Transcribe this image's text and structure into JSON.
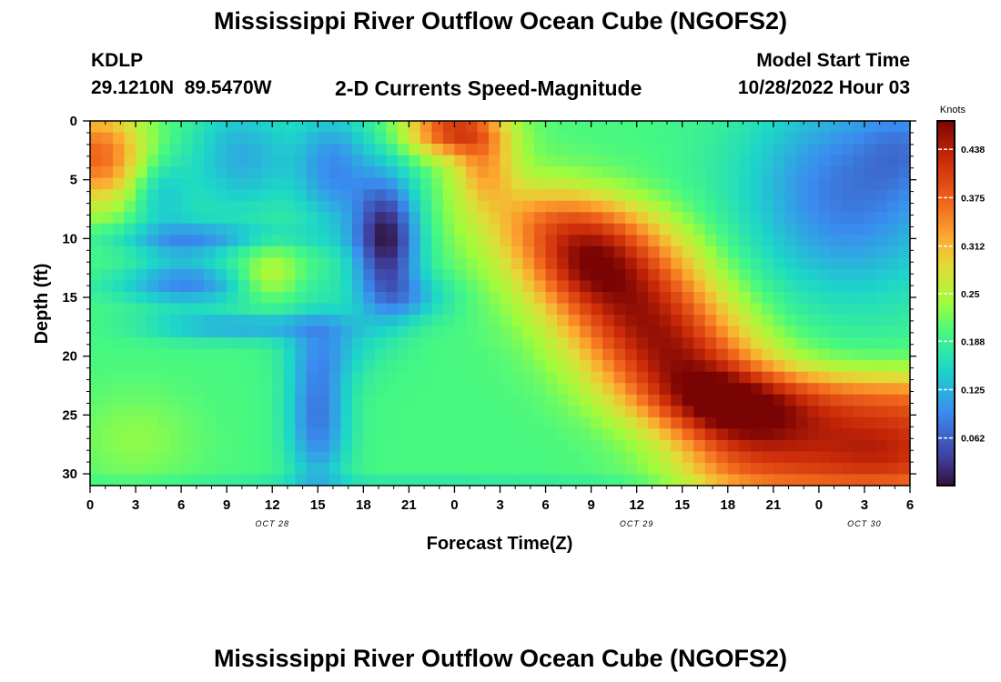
{
  "page": {
    "title": "Mississippi River Outflow Ocean Cube (NGOFS2)",
    "bottom_title": "Mississippi River Outflow Ocean Cube (NGOFS2)"
  },
  "header": {
    "station": "KDLP",
    "coords": "29.1210N  89.5470W",
    "plot_label": "2-D Currents Speed-Magnitude",
    "model_start_label": "Model Start Time",
    "model_start_value": "10/28/2022 Hour 03"
  },
  "chart_data": {
    "type": "heatmap",
    "title": "2-D Currents Speed-Magnitude",
    "xlabel": "Forecast Time(Z)",
    "ylabel": "Depth (ft)",
    "x_tick_labels": [
      "0",
      "3",
      "6",
      "9",
      "12",
      "15",
      "18",
      "21",
      "0",
      "3",
      "6",
      "9",
      "12",
      "15",
      "18",
      "21",
      "0",
      "3",
      "6"
    ],
    "x_tick_hours": [
      0,
      3,
      6,
      9,
      12,
      15,
      18,
      21,
      24,
      27,
      30,
      33,
      36,
      39,
      42,
      45,
      48,
      51,
      54
    ],
    "xlim": [
      0,
      54
    ],
    "date_labels": [
      {
        "label": "OCT 28",
        "hour": 12
      },
      {
        "label": "OCT 29",
        "hour": 36
      },
      {
        "label": "OCT 30",
        "hour": 51
      }
    ],
    "y_ticks": [
      0,
      5,
      10,
      15,
      20,
      25,
      30
    ],
    "ylim": [
      0,
      31
    ],
    "y_inverted": true,
    "colorbar": {
      "label": "Knots",
      "min": 0.0,
      "max": 0.475,
      "tick_values": [
        0.438,
        0.375,
        0.312,
        0.25,
        0.188,
        0.125,
        0.062
      ],
      "tick_labels": [
        "0.438",
        "0.375",
        "0.312",
        "0.25",
        "0.188",
        "0.125",
        "0.062"
      ],
      "colormap": "turbo"
    },
    "grid": false,
    "speed_features_knots": [
      {
        "hour": 0.5,
        "depth": 3,
        "value": 0.36
      },
      {
        "hour": 3,
        "depth": 27,
        "value": 0.22
      },
      {
        "hour": 12,
        "depth": 13,
        "value": 0.24
      },
      {
        "hour": 19.5,
        "depth": 9.5,
        "value": 0.02
      },
      {
        "hour": 15,
        "depth": 24,
        "value": 0.04
      },
      {
        "hour": 24,
        "depth": 0.5,
        "value": 0.39
      },
      {
        "hour": 32.5,
        "depth": 12.5,
        "value": 0.465
      },
      {
        "hour": 36,
        "depth": 19,
        "value": 0.43
      },
      {
        "hour": 52,
        "depth": 27,
        "value": 0.4
      },
      {
        "hour": 54,
        "depth": 5,
        "value": 0.08
      }
    ]
  }
}
